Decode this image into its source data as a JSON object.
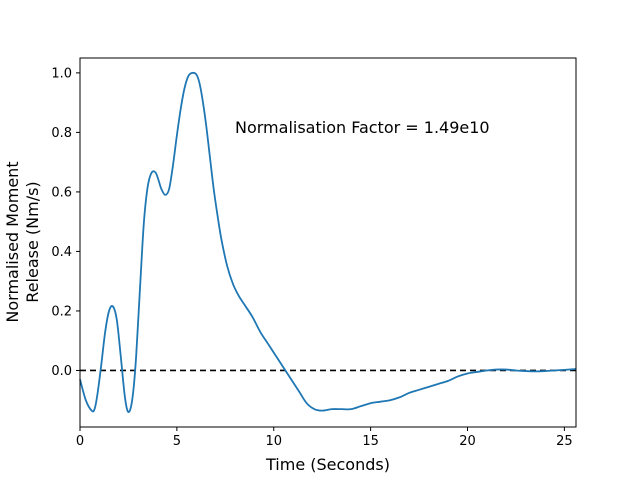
{
  "chart_data": {
    "type": "line",
    "xlabel": "Time (Seconds)",
    "ylabel_lines": [
      "Normalised Moment",
      "Release (Nm/s)"
    ],
    "annotation": "Normalisation Factor = 1.49e10",
    "xlim": [
      0,
      25.6
    ],
    "ylim": [
      -0.19,
      1.05
    ],
    "xticks": [
      0,
      5,
      10,
      15,
      20,
      25
    ],
    "yticks": [
      0.0,
      0.2,
      0.4,
      0.6,
      0.8,
      1.0
    ],
    "xtick_labels": [
      "0",
      "5",
      "10",
      "15",
      "20",
      "25"
    ],
    "ytick_labels": [
      "0.0",
      "0.2",
      "0.4",
      "0.6",
      "0.8",
      "1.0"
    ],
    "grid": false,
    "reference_line": {
      "y": 0.0,
      "style": "dashed",
      "color": "#000000"
    },
    "series": [
      {
        "color": "#1f77b4",
        "x": [
          0,
          0.3,
          0.6,
          0.75,
          0.9,
          1.1,
          1.3,
          1.5,
          1.7,
          1.9,
          2.1,
          2.3,
          2.45,
          2.6,
          2.75,
          2.9,
          3.1,
          3.3,
          3.5,
          3.7,
          3.9,
          4.05,
          4.2,
          4.4,
          4.6,
          4.8,
          5.0,
          5.2,
          5.4,
          5.6,
          5.8,
          6.0,
          6.15,
          6.3,
          6.5,
          6.7,
          6.9,
          7.1,
          7.3,
          7.6,
          7.9,
          8.2,
          8.5,
          8.9,
          9.3,
          9.7,
          10.1,
          10.5,
          10.9,
          11.3,
          11.7,
          12.1,
          12.5,
          13.0,
          13.5,
          14.0,
          14.5,
          15.0,
          15.5,
          16.0,
          16.5,
          17.0,
          17.5,
          18.0,
          18.5,
          19.0,
          19.5,
          20.0,
          20.5,
          21.0,
          21.5,
          22.0,
          22.5,
          23.0,
          23.5,
          24.0,
          24.5,
          25.0,
          25.6
        ],
        "y": [
          -0.03,
          -0.1,
          -0.135,
          -0.13,
          -0.08,
          0.02,
          0.13,
          0.2,
          0.215,
          0.17,
          0.05,
          -0.08,
          -0.135,
          -0.13,
          -0.07,
          0.05,
          0.28,
          0.5,
          0.62,
          0.665,
          0.665,
          0.64,
          0.61,
          0.59,
          0.61,
          0.69,
          0.79,
          0.88,
          0.95,
          0.99,
          1.0,
          0.995,
          0.97,
          0.92,
          0.83,
          0.72,
          0.61,
          0.52,
          0.44,
          0.35,
          0.29,
          0.25,
          0.22,
          0.18,
          0.13,
          0.09,
          0.05,
          0.01,
          -0.03,
          -0.07,
          -0.11,
          -0.13,
          -0.135,
          -0.13,
          -0.13,
          -0.13,
          -0.12,
          -0.11,
          -0.105,
          -0.1,
          -0.09,
          -0.075,
          -0.065,
          -0.055,
          -0.045,
          -0.035,
          -0.02,
          -0.01,
          -0.005,
          0.0,
          0.003,
          0.003,
          0.0,
          -0.002,
          -0.003,
          -0.002,
          0.0,
          0.002,
          0.005
        ]
      }
    ]
  }
}
